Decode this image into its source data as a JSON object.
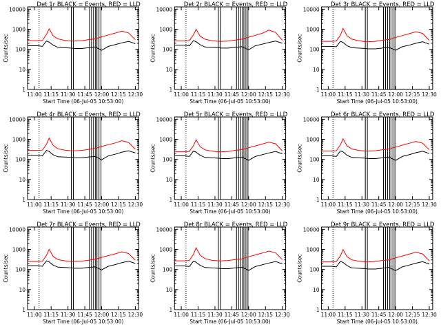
{
  "colors": {
    "events": "#000000",
    "lld": "#ff0000",
    "axis": "#000000",
    "background": "#ffffff"
  },
  "shared": {
    "ylabel": "Counts/sec",
    "xlabel": "Start Time (06-Jul-05 10:53:00)",
    "x_ticks": [
      "11:00",
      "11:15",
      "11:30",
      "11:45",
      "12:00",
      "12:15",
      "12:30"
    ],
    "y_ticks": [
      "1",
      "10",
      "100",
      "1000",
      "10000"
    ],
    "x_range_minutes": [
      10.9,
      12.55
    ],
    "y_range": [
      1,
      13000
    ],
    "y_scale": "log",
    "dotted_marker_x": 11.07,
    "gap_lines_x": [
      11.55,
      11.58,
      11.82,
      11.85,
      11.88,
      11.91,
      11.93,
      11.96,
      11.99
    ]
  },
  "chart_data": [
    {
      "type": "line",
      "title": "Det 1r BLACK = Events, RED = LLD",
      "series": [
        {
          "name": "Events",
          "color": "#000000",
          "x": [
            10.9,
            11.05,
            11.12,
            11.18,
            11.22,
            11.28,
            11.35,
            11.45,
            11.55,
            11.6,
            11.7,
            11.8,
            11.9,
            12.0,
            12.1,
            12.2,
            12.3,
            12.4,
            12.5
          ],
          "y": [
            150,
            150,
            140,
            260,
            230,
            160,
            125,
            120,
            115,
            110,
            110,
            120,
            130,
            90,
            140,
            170,
            210,
            250,
            190
          ]
        },
        {
          "name": "LLD",
          "color": "#ff0000",
          "x": [
            10.9,
            11.05,
            11.12,
            11.18,
            11.22,
            11.28,
            11.35,
            11.45,
            11.55,
            11.6,
            11.7,
            11.8,
            11.9,
            12.0,
            12.1,
            12.2,
            12.3,
            12.4,
            12.5
          ],
          "y": [
            270,
            270,
            280,
            550,
            1050,
            480,
            330,
            280,
            260,
            260,
            270,
            300,
            330,
            420,
            520,
            640,
            800,
            650,
            300
          ]
        }
      ]
    },
    {
      "type": "line",
      "title": "Det 2r BLACK = Events, RED = LLD",
      "series": [
        {
          "name": "Events",
          "color": "#000000",
          "x": [
            10.9,
            11.05,
            11.12,
            11.18,
            11.22,
            11.28,
            11.35,
            11.45,
            11.55,
            11.6,
            11.7,
            11.8,
            11.9,
            12.0,
            12.1,
            12.2,
            12.3,
            12.4,
            12.5
          ],
          "y": [
            160,
            160,
            150,
            270,
            240,
            170,
            130,
            125,
            120,
            115,
            115,
            125,
            135,
            95,
            150,
            180,
            220,
            260,
            200
          ]
        },
        {
          "name": "LLD",
          "color": "#ff0000",
          "x": [
            10.9,
            11.05,
            11.12,
            11.18,
            11.22,
            11.28,
            11.35,
            11.45,
            11.55,
            11.6,
            11.7,
            11.8,
            11.9,
            12.0,
            12.1,
            12.2,
            12.3,
            12.4,
            12.5
          ],
          "y": [
            260,
            260,
            270,
            520,
            1000,
            450,
            320,
            270,
            250,
            250,
            260,
            290,
            320,
            400,
            500,
            620,
            900,
            700,
            280
          ]
        }
      ]
    },
    {
      "type": "line",
      "title": "Det 3r BLACK = Events, RED = LLD",
      "series": [
        {
          "name": "Events",
          "color": "#000000",
          "x": [
            10.9,
            11.05,
            11.12,
            11.18,
            11.22,
            11.28,
            11.35,
            11.45,
            11.55,
            11.6,
            11.7,
            11.8,
            11.9,
            12.0,
            12.1,
            12.2,
            12.3,
            12.4,
            12.5
          ],
          "y": [
            140,
            140,
            135,
            250,
            220,
            150,
            120,
            115,
            110,
            105,
            105,
            115,
            125,
            90,
            135,
            160,
            200,
            240,
            180
          ]
        },
        {
          "name": "LLD",
          "color": "#ff0000",
          "x": [
            10.9,
            11.05,
            11.12,
            11.18,
            11.22,
            11.28,
            11.35,
            11.45,
            11.55,
            11.6,
            11.7,
            11.8,
            11.9,
            12.0,
            12.1,
            12.2,
            12.3,
            12.4,
            12.5
          ],
          "y": [
            250,
            250,
            260,
            500,
            1100,
            470,
            320,
            270,
            240,
            240,
            250,
            280,
            310,
            390,
            480,
            600,
            750,
            620,
            280
          ]
        }
      ]
    },
    {
      "type": "line",
      "title": "Det 4r BLACK = Events, RED = LLD",
      "series": [
        {
          "name": "Events",
          "color": "#000000",
          "x": [
            10.9,
            11.05,
            11.12,
            11.18,
            11.22,
            11.28,
            11.35,
            11.45,
            11.55,
            11.6,
            11.7,
            11.8,
            11.9,
            12.0,
            12.1,
            12.2,
            12.3,
            12.4,
            12.5
          ],
          "y": [
            160,
            160,
            150,
            280,
            250,
            170,
            135,
            130,
            125,
            120,
            120,
            130,
            140,
            95,
            150,
            180,
            230,
            270,
            210
          ]
        },
        {
          "name": "LLD",
          "color": "#ff0000",
          "x": [
            10.9,
            11.05,
            11.12,
            11.18,
            11.22,
            11.28,
            11.35,
            11.45,
            11.55,
            11.6,
            11.7,
            11.8,
            11.9,
            12.0,
            12.1,
            12.2,
            12.3,
            12.4,
            12.5
          ],
          "y": [
            280,
            280,
            290,
            560,
            1150,
            500,
            340,
            290,
            270,
            270,
            280,
            310,
            350,
            440,
            540,
            660,
            850,
            700,
            320
          ]
        }
      ]
    },
    {
      "type": "line",
      "title": "Det 5r BLACK = Events, RED = LLD",
      "series": [
        {
          "name": "Events",
          "color": "#000000",
          "x": [
            10.9,
            11.05,
            11.12,
            11.18,
            11.22,
            11.28,
            11.35,
            11.45,
            11.55,
            11.6,
            11.7,
            11.8,
            11.9,
            12.0,
            12.1,
            12.2,
            12.3,
            12.4,
            12.5
          ],
          "y": [
            150,
            150,
            140,
            260,
            230,
            160,
            125,
            120,
            115,
            110,
            110,
            120,
            130,
            90,
            140,
            170,
            210,
            250,
            190
          ]
        },
        {
          "name": "LLD",
          "color": "#ff0000",
          "x": [
            10.9,
            11.05,
            11.12,
            11.18,
            11.22,
            11.28,
            11.35,
            11.45,
            11.55,
            11.6,
            11.7,
            11.8,
            11.9,
            12.0,
            12.1,
            12.2,
            12.3,
            12.4,
            12.5
          ],
          "y": [
            240,
            240,
            250,
            480,
            950,
            430,
            300,
            260,
            240,
            240,
            250,
            280,
            310,
            380,
            470,
            580,
            720,
            600,
            270
          ]
        }
      ]
    },
    {
      "type": "line",
      "title": "Det 6r BLACK = Events, RED = LLD",
      "series": [
        {
          "name": "Events",
          "color": "#000000",
          "x": [
            10.9,
            11.05,
            11.12,
            11.18,
            11.22,
            11.28,
            11.35,
            11.45,
            11.55,
            11.6,
            11.7,
            11.8,
            11.9,
            12.0,
            12.1,
            12.2,
            12.3,
            12.4,
            12.5
          ],
          "y": [
            150,
            150,
            140,
            265,
            235,
            160,
            125,
            120,
            115,
            110,
            110,
            120,
            130,
            90,
            140,
            170,
            215,
            255,
            195
          ]
        },
        {
          "name": "LLD",
          "color": "#ff0000",
          "x": [
            10.9,
            11.05,
            11.12,
            11.18,
            11.22,
            11.28,
            11.35,
            11.45,
            11.55,
            11.6,
            11.7,
            11.8,
            11.9,
            12.0,
            12.1,
            12.2,
            12.3,
            12.4,
            12.5
          ],
          "y": [
            260,
            260,
            270,
            530,
            1050,
            470,
            330,
            280,
            260,
            260,
            270,
            300,
            330,
            410,
            510,
            630,
            780,
            640,
            300
          ]
        }
      ]
    },
    {
      "type": "line",
      "title": "Det 7r BLACK = Events, RED = LLD",
      "series": [
        {
          "name": "Events",
          "color": "#000000",
          "x": [
            10.9,
            11.05,
            11.12,
            11.18,
            11.22,
            11.28,
            11.35,
            11.45,
            11.55,
            11.6,
            11.7,
            11.8,
            11.9,
            12.0,
            12.1,
            12.2,
            12.3,
            12.4,
            12.5
          ],
          "y": [
            155,
            155,
            145,
            270,
            240,
            165,
            130,
            125,
            120,
            115,
            115,
            125,
            135,
            95,
            145,
            175,
            220,
            260,
            200
          ]
        },
        {
          "name": "LLD",
          "color": "#ff0000",
          "x": [
            10.9,
            11.05,
            11.12,
            11.18,
            11.22,
            11.28,
            11.35,
            11.45,
            11.55,
            11.6,
            11.7,
            11.8,
            11.9,
            12.0,
            12.1,
            12.2,
            12.3,
            12.4,
            12.5
          ],
          "y": [
            250,
            250,
            260,
            500,
            1000,
            450,
            310,
            270,
            250,
            250,
            260,
            290,
            320,
            400,
            490,
            600,
            760,
            620,
            290
          ]
        }
      ]
    },
    {
      "type": "line",
      "title": "Det 8r BLACK = Events, RED = LLD",
      "series": [
        {
          "name": "Events",
          "color": "#000000",
          "x": [
            10.9,
            11.05,
            11.12,
            11.18,
            11.22,
            11.28,
            11.35,
            11.45,
            11.55,
            11.6,
            11.7,
            11.8,
            11.9,
            12.0,
            12.1,
            12.2,
            12.3,
            12.4,
            12.5
          ],
          "y": [
            150,
            150,
            140,
            260,
            230,
            160,
            125,
            120,
            115,
            110,
            110,
            120,
            130,
            90,
            140,
            170,
            210,
            250,
            190
          ]
        },
        {
          "name": "LLD",
          "color": "#ff0000",
          "x": [
            10.9,
            11.05,
            11.12,
            11.18,
            11.22,
            11.28,
            11.35,
            11.45,
            11.55,
            11.6,
            11.7,
            11.8,
            11.9,
            12.0,
            12.1,
            12.2,
            12.3,
            12.4,
            12.5
          ],
          "y": [
            270,
            270,
            280,
            560,
            1200,
            520,
            350,
            290,
            270,
            270,
            280,
            310,
            340,
            430,
            530,
            650,
            820,
            680,
            310
          ]
        }
      ]
    },
    {
      "type": "line",
      "title": "Det 9r BLACK = Events, RED = LLD",
      "series": [
        {
          "name": "Events",
          "color": "#000000",
          "x": [
            10.9,
            11.05,
            11.12,
            11.18,
            11.22,
            11.28,
            11.35,
            11.45,
            11.55,
            11.6,
            11.7,
            11.8,
            11.9,
            12.0,
            12.1,
            12.2,
            12.3,
            12.4,
            12.5
          ],
          "y": [
            145,
            145,
            135,
            255,
            225,
            155,
            120,
            115,
            110,
            105,
            105,
            115,
            125,
            88,
            135,
            165,
            205,
            245,
            185
          ]
        },
        {
          "name": "LLD",
          "color": "#ff0000",
          "x": [
            10.9,
            11.05,
            11.12,
            11.18,
            11.22,
            11.28,
            11.35,
            11.45,
            11.55,
            11.6,
            11.7,
            11.8,
            11.9,
            12.0,
            12.1,
            12.2,
            12.3,
            12.4,
            12.5
          ],
          "y": [
            240,
            240,
            250,
            470,
            980,
            430,
            300,
            260,
            240,
            240,
            250,
            280,
            300,
            380,
            470,
            580,
            720,
            600,
            270
          ]
        }
      ]
    }
  ]
}
